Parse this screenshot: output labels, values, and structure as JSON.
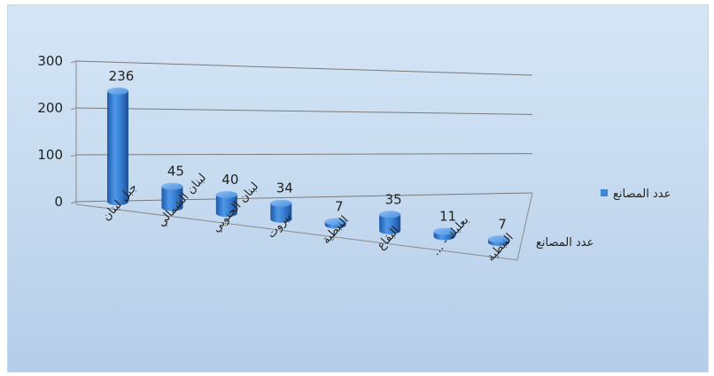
{
  "chart_data": {
    "type": "bar",
    "style": "3d-cylinder",
    "categories": [
      "جبل لبنان",
      "لبنان الشمالي",
      "لبنان الجنوبي",
      "بيروت",
      "النبطية",
      "البقاع",
      "بعلبك - ...",
      "النبطية"
    ],
    "series": [
      {
        "name": "عدد المصانع",
        "values": [
          236,
          45,
          40,
          34,
          7,
          35,
          11,
          7
        ],
        "color": "#3f86d8"
      }
    ],
    "ylim": [
      0,
      300
    ],
    "yticks": [
      0,
      100,
      200,
      300
    ],
    "depth_axis_label": "عدد المصانع",
    "legend": {
      "position": "right",
      "entries": [
        "عدد المصانع"
      ]
    },
    "grid": true
  }
}
